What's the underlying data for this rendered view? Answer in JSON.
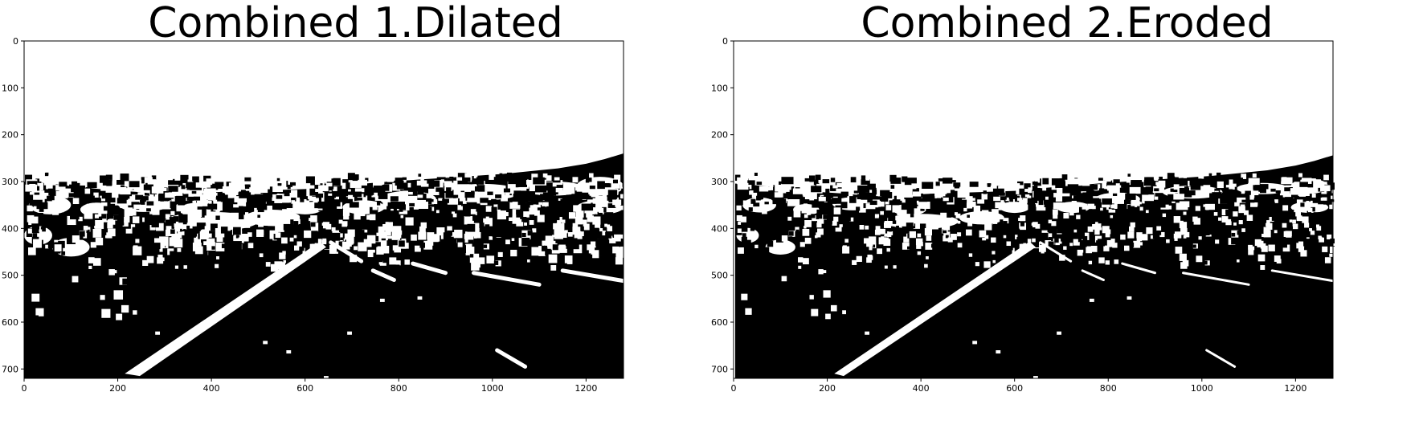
{
  "chart_data": [
    {
      "type": "image",
      "title": "Combined 1.Dilated",
      "xlabel": "",
      "ylabel": "",
      "xlim": [
        0,
        1280
      ],
      "ylim": [
        720,
        0
      ],
      "xticks": [
        0,
        200,
        400,
        600,
        800,
        1000,
        1200
      ],
      "yticks": [
        0,
        100,
        200,
        300,
        400,
        500,
        600,
        700
      ],
      "grid": false,
      "colormap": "binary (white = 1, black = 0)"
    },
    {
      "type": "image",
      "title": "Combined 2.Eroded",
      "xlabel": "",
      "ylabel": "",
      "xlim": [
        0,
        1280
      ],
      "ylim": [
        720,
        0
      ],
      "xticks": [
        0,
        200,
        400,
        600,
        800,
        1000,
        1200
      ],
      "yticks": [
        0,
        100,
        200,
        300,
        400,
        500,
        600,
        700
      ],
      "grid": false,
      "colormap": "binary (white = 1, black = 0)"
    }
  ],
  "colors": {
    "foreground": "#ffffff",
    "background_mask": "#000000",
    "axis": "#000000"
  }
}
